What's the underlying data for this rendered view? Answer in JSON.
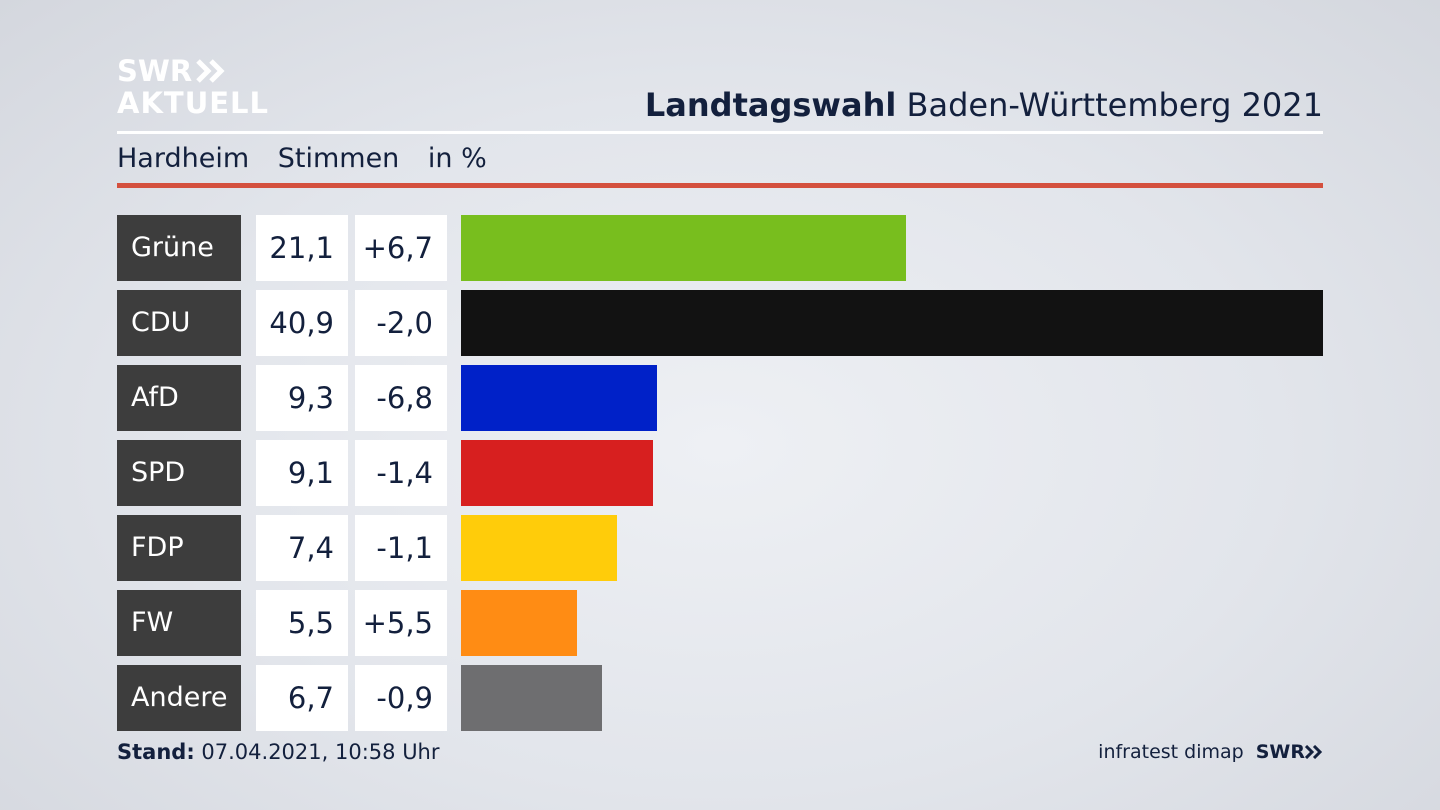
{
  "brand": {
    "line1": "SWR",
    "line2": "AKTUELL"
  },
  "header": {
    "title_bold": "Landtagswahl",
    "title_rest": "Baden-Württemberg 2021"
  },
  "subheader": {
    "place": "Hardheim",
    "measure": "Stimmen",
    "unit": "in %"
  },
  "footer": {
    "stand_label": "Stand:",
    "stand_value": "07.04.2021, 10:58 Uhr",
    "source": "infratest dimap",
    "source_logo": "SWR"
  },
  "chart_data": {
    "type": "bar",
    "orientation": "horizontal",
    "categories": [
      "Grüne",
      "CDU",
      "AfD",
      "SPD",
      "FDP",
      "FW",
      "Andere"
    ],
    "values": [
      21.1,
      40.9,
      9.3,
      9.1,
      7.4,
      5.5,
      6.7
    ],
    "value_labels": [
      "21,1",
      "40,9",
      "9,3",
      "9,1",
      "7,4",
      "5,5",
      "6,7"
    ],
    "diff_labels": [
      "+6,7",
      "-2,0",
      "-6,8",
      "-1,4",
      "-1,1",
      "+5,5",
      "-0,9"
    ],
    "colors": [
      "#78be1e",
      "#121212",
      "#0021c8",
      "#d71f1f",
      "#ffcc0a",
      "#ff8c14",
      "#6e6e70"
    ],
    "xlim": [
      0,
      40.9
    ]
  }
}
